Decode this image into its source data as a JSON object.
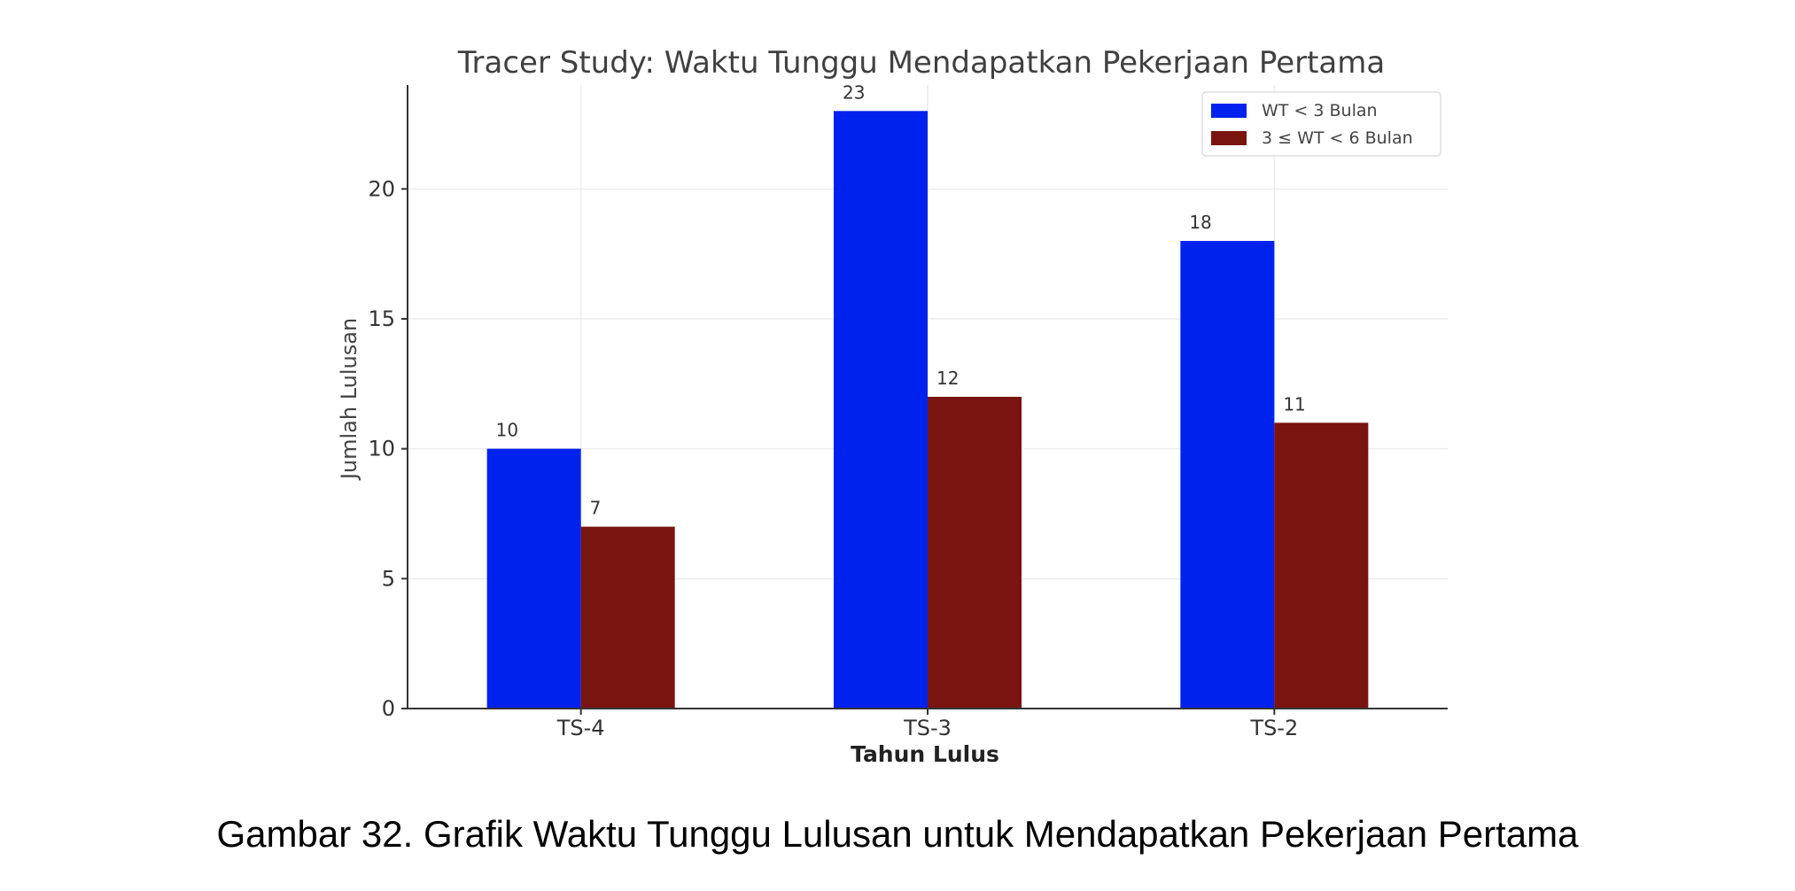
{
  "chart_data": {
    "type": "bar",
    "title": "Tracer Study: Waktu Tunggu Mendapatkan Pekerjaan Pertama",
    "xlabel": "Tahun Lulus",
    "ylabel": "Jumlah Lulusan",
    "categories": [
      "TS-4",
      "TS-3",
      "TS-2"
    ],
    "series": [
      {
        "name": "WT < 3 Bulan",
        "values": [
          10,
          23,
          18
        ],
        "color": "#0022ee"
      },
      {
        "name": "3 ≤ WT < 6 Bulan",
        "values": [
          7,
          12,
          11
        ],
        "color": "#7a1410"
      }
    ],
    "ylim": [
      0,
      24
    ],
    "yticks": [
      0,
      5,
      10,
      15,
      20
    ],
    "grid": true,
    "legend": "top-right"
  },
  "caption": "Gambar 32. Grafik Waktu Tunggu Lulusan untuk Mendapatkan Pekerjaan Pertama"
}
